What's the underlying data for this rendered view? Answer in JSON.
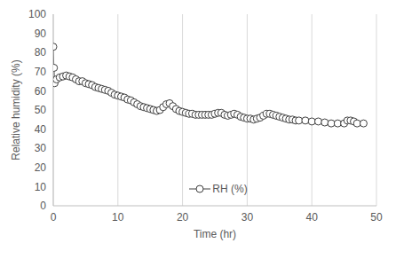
{
  "chart_data": {
    "type": "line",
    "x_label": "Time (hr)",
    "y_label": "Relative humidity (%)",
    "x": [
      0,
      0.1,
      0.2,
      0.5,
      1,
      1.5,
      2,
      2.5,
      3,
      3.5,
      4,
      4.5,
      5,
      5.5,
      6,
      6.5,
      7,
      7.5,
      8,
      8.5,
      9,
      9.5,
      10,
      10.5,
      11,
      11.5,
      12,
      12.5,
      13,
      13.5,
      14,
      14.5,
      15,
      15.5,
      16,
      16.5,
      17,
      17.5,
      18,
      18.5,
      19,
      19.5,
      20,
      20.5,
      21,
      21.5,
      22,
      22.5,
      23,
      23.5,
      24,
      24.5,
      25,
      25.5,
      26,
      26.5,
      27,
      27.5,
      28,
      28.5,
      29,
      29.5,
      30,
      30.5,
      31,
      31.5,
      32,
      32.5,
      33,
      33.5,
      34,
      34.5,
      35,
      35.5,
      36,
      36.5,
      37,
      37.5,
      38,
      39,
      40,
      41,
      42,
      43,
      44,
      45,
      45.5,
      46,
      46.5,
      47,
      48
    ],
    "series": [
      {
        "name": "RH (%)",
        "color": "#404040",
        "marker": "circle",
        "values": [
          83,
          72,
          64,
          66,
          67,
          67.5,
          68,
          67.5,
          67,
          66,
          65,
          65,
          64,
          63.5,
          63,
          62,
          61.5,
          61,
          60.5,
          60,
          59,
          58,
          57.5,
          57,
          56.5,
          55.5,
          55,
          54,
          53,
          52,
          51.5,
          51,
          50.5,
          50,
          49.5,
          50,
          51.5,
          53,
          53.5,
          52,
          50.5,
          49.5,
          49,
          48.5,
          48,
          48,
          47.5,
          47.5,
          47.5,
          47.5,
          47.5,
          47.5,
          48,
          48.5,
          48.5,
          47.5,
          47,
          47.5,
          48,
          47.5,
          46.5,
          46,
          45.5,
          45.5,
          45,
          45.5,
          46,
          47,
          48,
          48,
          47.5,
          47,
          46.5,
          46,
          45.5,
          45,
          45,
          44.5,
          44.5,
          44.5,
          44,
          44,
          43.5,
          43,
          43,
          43,
          44.5,
          44.5,
          44,
          43,
          43
        ]
      }
    ],
    "xlim": [
      0,
      50
    ],
    "xticks": [
      0,
      10,
      20,
      30,
      40,
      50
    ],
    "ylim": [
      0,
      100
    ],
    "yticks": [
      0,
      10,
      20,
      30,
      40,
      50,
      60,
      70,
      80,
      90,
      100
    ],
    "grid": true,
    "legend": "bottom"
  }
}
